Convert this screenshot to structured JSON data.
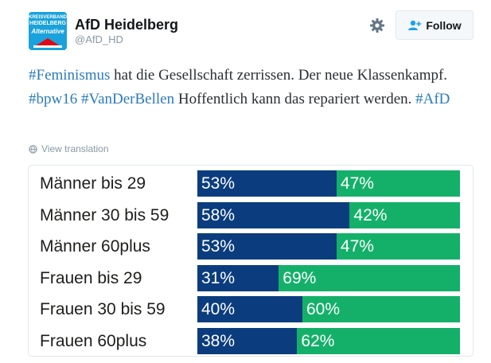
{
  "account": {
    "avatar_lines": [
      "KREISVERBAND",
      "HEIDELBERG",
      "Alternative"
    ],
    "name": "AfD Heidelberg",
    "handle": "@AfD_HD"
  },
  "actions": {
    "settings_icon": "gear-icon",
    "follow_icon": "add-user-icon",
    "follow_label": "Follow"
  },
  "tweet": {
    "segments": [
      {
        "text": "#Feminismus",
        "tag": true
      },
      {
        "text": " hat die Gesellschaft zerrissen. Der neue Klassenkampf. ",
        "tag": false
      },
      {
        "text": "#bpw16",
        "tag": true
      },
      {
        "text": " ",
        "tag": false
      },
      {
        "text": "#VanDerBellen",
        "tag": true
      },
      {
        "text": " Hoffentlich kann das repariert werden. ",
        "tag": false
      },
      {
        "text": "#AfD",
        "tag": true
      }
    ],
    "translate_label": "View translation",
    "translate_icon": "globe-icon"
  },
  "colors": {
    "left_bar": "#0b3d7e",
    "right_bar": "#14b06a",
    "hashtag": "#2b7bb9"
  },
  "chart_data": {
    "type": "bar",
    "categories": [
      "Männer bis 29",
      "Männer 30 bis 59",
      "Männer 60plus",
      "Frauen bis 29",
      "Frauen 30 bis 59",
      "Frauen 60plus"
    ],
    "series": [
      {
        "values": [
          53,
          58,
          53,
          31,
          40,
          38
        ],
        "labels": [
          "53%",
          "58%",
          "53%",
          "31%",
          "40%",
          "38%"
        ]
      },
      {
        "values": [
          47,
          42,
          47,
          69,
          60,
          62
        ],
        "labels": [
          "47%",
          "42%",
          "47%",
          "69%",
          "60%",
          "62%"
        ]
      }
    ],
    "stacked": true,
    "orientation": "horizontal",
    "xlim": [
      0,
      100
    ]
  }
}
